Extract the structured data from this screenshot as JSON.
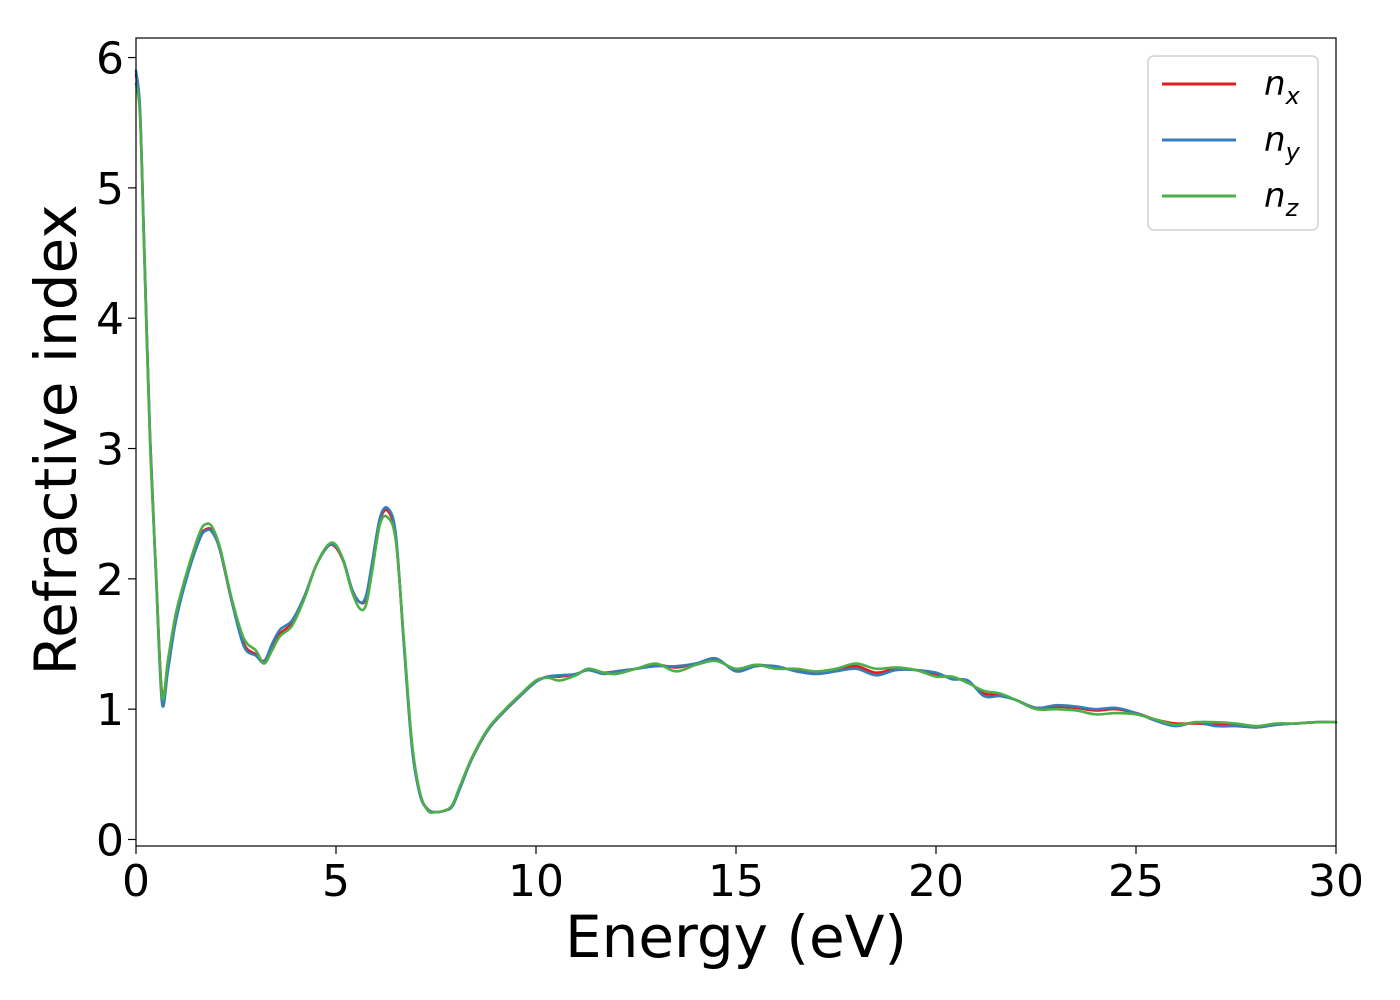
{
  "chart_data": {
    "type": "line",
    "title": "",
    "xlabel": "Energy (eV)",
    "ylabel": "Refractive index",
    "xlim": [
      0,
      30
    ],
    "ylim": [
      -0.05,
      6.15
    ],
    "xticks": [
      0,
      5,
      10,
      15,
      20,
      25,
      30
    ],
    "yticks": [
      0,
      1,
      2,
      3,
      4,
      5,
      6
    ],
    "grid": false,
    "legend_position": "top-right",
    "series": [
      {
        "name": "n",
        "subscript": "x",
        "color": "#e41a1c",
        "x": [
          0,
          0.1,
          0.2,
          0.35,
          0.5,
          0.65,
          0.8,
          1.0,
          1.3,
          1.6,
          1.75,
          1.9,
          2.1,
          2.4,
          2.7,
          3.0,
          3.2,
          3.4,
          3.6,
          3.9,
          4.2,
          4.5,
          4.8,
          5.0,
          5.2,
          5.4,
          5.6,
          5.75,
          5.9,
          6.1,
          6.3,
          6.5,
          6.7,
          6.9,
          7.1,
          7.3,
          7.5,
          7.7,
          7.9,
          8.1,
          8.4,
          8.8,
          9.2,
          9.6,
          10.0,
          10.3,
          10.6,
          11.0,
          11.3,
          11.7,
          12.0,
          12.5,
          13.0,
          13.5,
          14.0,
          14.5,
          15.0,
          15.5,
          16.0,
          16.5,
          17.0,
          17.5,
          18.0,
          18.5,
          19.0,
          19.5,
          20.0,
          20.4,
          20.8,
          21.2,
          21.6,
          22.0,
          22.5,
          23.0,
          23.5,
          24.0,
          24.5,
          25.0,
          25.5,
          26.0,
          26.5,
          27.0,
          27.5,
          28.0,
          28.5,
          29.0,
          29.5,
          30.0
        ],
        "values": [
          5.87,
          5.6,
          4.6,
          3.1,
          2.05,
          1.12,
          1.35,
          1.7,
          2.05,
          2.32,
          2.38,
          2.37,
          2.22,
          1.82,
          1.5,
          1.42,
          1.37,
          1.48,
          1.58,
          1.66,
          1.85,
          2.1,
          2.25,
          2.24,
          2.12,
          1.92,
          1.82,
          1.85,
          2.1,
          2.45,
          2.52,
          2.3,
          1.5,
          0.72,
          0.35,
          0.23,
          0.21,
          0.22,
          0.26,
          0.4,
          0.62,
          0.84,
          0.98,
          1.1,
          1.21,
          1.25,
          1.25,
          1.27,
          1.3,
          1.28,
          1.29,
          1.31,
          1.34,
          1.32,
          1.35,
          1.38,
          1.3,
          1.34,
          1.32,
          1.3,
          1.28,
          1.3,
          1.33,
          1.28,
          1.31,
          1.3,
          1.27,
          1.24,
          1.21,
          1.12,
          1.11,
          1.07,
          1.01,
          1.02,
          1.01,
          0.99,
          1.0,
          0.97,
          0.92,
          0.89,
          0.89,
          0.88,
          0.88,
          0.86,
          0.88,
          0.89,
          0.9,
          0.9
        ]
      },
      {
        "name": "n",
        "subscript": "y",
        "color": "#377eb8",
        "x": [
          0,
          0.1,
          0.2,
          0.35,
          0.5,
          0.65,
          0.8,
          1.0,
          1.3,
          1.6,
          1.75,
          1.9,
          2.1,
          2.4,
          2.7,
          3.0,
          3.2,
          3.4,
          3.6,
          3.9,
          4.2,
          4.5,
          4.8,
          5.0,
          5.2,
          5.4,
          5.6,
          5.75,
          5.9,
          6.1,
          6.3,
          6.5,
          6.7,
          6.9,
          7.1,
          7.3,
          7.5,
          7.7,
          7.9,
          8.1,
          8.4,
          8.8,
          9.2,
          9.6,
          10.0,
          10.3,
          10.6,
          11.0,
          11.3,
          11.7,
          12.0,
          12.5,
          13.0,
          13.5,
          14.0,
          14.5,
          15.0,
          15.5,
          16.0,
          16.5,
          17.0,
          17.5,
          18.0,
          18.5,
          19.0,
          19.5,
          20.0,
          20.4,
          20.8,
          21.2,
          21.6,
          22.0,
          22.5,
          23.0,
          23.5,
          24.0,
          24.5,
          25.0,
          25.5,
          26.0,
          26.5,
          27.0,
          27.5,
          28.0,
          28.5,
          29.0,
          29.5,
          30.0
        ],
        "values": [
          5.9,
          5.6,
          4.6,
          3.1,
          2.02,
          1.05,
          1.3,
          1.68,
          2.04,
          2.31,
          2.37,
          2.36,
          2.22,
          1.82,
          1.48,
          1.41,
          1.36,
          1.5,
          1.61,
          1.68,
          1.86,
          2.1,
          2.25,
          2.25,
          2.13,
          1.92,
          1.82,
          1.87,
          2.12,
          2.47,
          2.54,
          2.33,
          1.48,
          0.7,
          0.34,
          0.23,
          0.21,
          0.22,
          0.25,
          0.39,
          0.62,
          0.84,
          0.98,
          1.1,
          1.21,
          1.25,
          1.26,
          1.27,
          1.3,
          1.27,
          1.29,
          1.31,
          1.33,
          1.33,
          1.35,
          1.39,
          1.29,
          1.33,
          1.33,
          1.29,
          1.27,
          1.29,
          1.31,
          1.26,
          1.3,
          1.3,
          1.28,
          1.23,
          1.22,
          1.1,
          1.1,
          1.07,
          1.01,
          1.03,
          1.02,
          1.0,
          1.01,
          0.97,
          0.91,
          0.87,
          0.9,
          0.87,
          0.87,
          0.86,
          0.88,
          0.89,
          0.9,
          0.9
        ]
      },
      {
        "name": "n",
        "subscript": "z",
        "color": "#4daf4a",
        "x": [
          0,
          0.1,
          0.2,
          0.35,
          0.5,
          0.65,
          0.8,
          1.0,
          1.3,
          1.6,
          1.75,
          1.9,
          2.1,
          2.4,
          2.7,
          3.0,
          3.2,
          3.4,
          3.6,
          3.9,
          4.2,
          4.5,
          4.8,
          5.0,
          5.2,
          5.4,
          5.6,
          5.75,
          5.9,
          6.1,
          6.3,
          6.5,
          6.7,
          6.9,
          7.1,
          7.3,
          7.5,
          7.7,
          7.9,
          8.1,
          8.4,
          8.8,
          9.2,
          9.6,
          10.0,
          10.3,
          10.6,
          11.0,
          11.3,
          11.7,
          12.0,
          12.5,
          13.0,
          13.5,
          14.0,
          14.5,
          15.0,
          15.5,
          16.0,
          16.5,
          17.0,
          17.5,
          18.0,
          18.5,
          19.0,
          19.5,
          20.0,
          20.4,
          20.8,
          21.2,
          21.6,
          22.0,
          22.5,
          23.0,
          23.5,
          24.0,
          24.5,
          25.0,
          25.5,
          26.0,
          26.5,
          27.0,
          27.5,
          28.0,
          28.5,
          29.0,
          29.5,
          30.0
        ],
        "values": [
          5.8,
          5.55,
          4.55,
          3.05,
          2.05,
          1.1,
          1.38,
          1.74,
          2.08,
          2.36,
          2.42,
          2.4,
          2.24,
          1.84,
          1.54,
          1.45,
          1.35,
          1.45,
          1.56,
          1.64,
          1.84,
          2.1,
          2.26,
          2.26,
          2.12,
          1.9,
          1.77,
          1.8,
          2.05,
          2.42,
          2.47,
          2.28,
          1.52,
          0.74,
          0.36,
          0.22,
          0.21,
          0.22,
          0.26,
          0.41,
          0.63,
          0.85,
          0.99,
          1.11,
          1.22,
          1.24,
          1.22,
          1.26,
          1.31,
          1.28,
          1.27,
          1.31,
          1.35,
          1.29,
          1.34,
          1.37,
          1.31,
          1.34,
          1.31,
          1.31,
          1.29,
          1.31,
          1.35,
          1.31,
          1.32,
          1.3,
          1.25,
          1.25,
          1.2,
          1.14,
          1.12,
          1.07,
          1.0,
          1.0,
          0.99,
          0.96,
          0.97,
          0.96,
          0.92,
          0.88,
          0.9,
          0.9,
          0.89,
          0.87,
          0.89,
          0.89,
          0.9,
          0.9
        ]
      }
    ]
  }
}
